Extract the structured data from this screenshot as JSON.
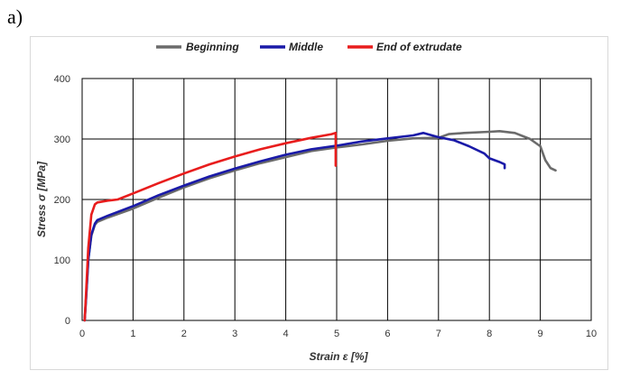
{
  "panel_label": "a)",
  "chart_data": {
    "type": "line",
    "title": "",
    "xlabel": "Strain ε [%]",
    "ylabel": "Stress σ [MPa]",
    "xlim": [
      0,
      10
    ],
    "ylim": [
      0,
      400
    ],
    "xticks": [
      0,
      1,
      2,
      3,
      4,
      5,
      6,
      7,
      8,
      9,
      10
    ],
    "yticks": [
      0,
      100,
      200,
      300,
      400
    ],
    "grid": true,
    "legend_position": "top-center",
    "series": [
      {
        "name": "Beginning",
        "color": "#6b6b6b",
        "x": [
          0.05,
          0.08,
          0.12,
          0.18,
          0.25,
          0.3,
          0.5,
          1.0,
          1.5,
          2.0,
          2.5,
          3.0,
          3.5,
          4.0,
          4.5,
          5.0,
          5.5,
          6.0,
          6.5,
          7.0,
          7.2,
          7.5,
          8.0,
          8.2,
          8.5,
          8.8,
          9.0,
          9.1,
          9.2,
          9.3
        ],
        "y": [
          0,
          40,
          100,
          140,
          158,
          163,
          170,
          185,
          203,
          220,
          235,
          248,
          260,
          270,
          280,
          286,
          291,
          297,
          301,
          302,
          308,
          310,
          312,
          313,
          310,
          300,
          288,
          265,
          252,
          248
        ]
      },
      {
        "name": "Middle",
        "color": "#1a1aa8",
        "x": [
          0.05,
          0.08,
          0.12,
          0.18,
          0.25,
          0.3,
          0.5,
          1.0,
          1.5,
          2.0,
          2.5,
          3.0,
          3.5,
          4.0,
          4.5,
          5.0,
          5.5,
          6.0,
          6.5,
          6.7,
          7.0,
          7.3,
          7.6,
          7.9,
          8.0,
          8.2,
          8.3,
          8.3
        ],
        "y": [
          0,
          40,
          100,
          142,
          160,
          166,
          173,
          189,
          207,
          223,
          238,
          251,
          263,
          274,
          283,
          289,
          296,
          301,
          306,
          310,
          303,
          298,
          288,
          276,
          268,
          262,
          258,
          252
        ]
      },
      {
        "name": "End of extrudate",
        "color": "#e81d1d",
        "x": [
          0.05,
          0.08,
          0.12,
          0.18,
          0.25,
          0.3,
          0.5,
          0.7,
          1.0,
          1.5,
          2.0,
          2.5,
          3.0,
          3.5,
          4.0,
          4.5,
          4.9,
          4.98,
          4.98
        ],
        "y": [
          0,
          50,
          120,
          175,
          192,
          195,
          198,
          200,
          210,
          227,
          243,
          258,
          271,
          283,
          293,
          302,
          308,
          310,
          256
        ]
      }
    ]
  }
}
